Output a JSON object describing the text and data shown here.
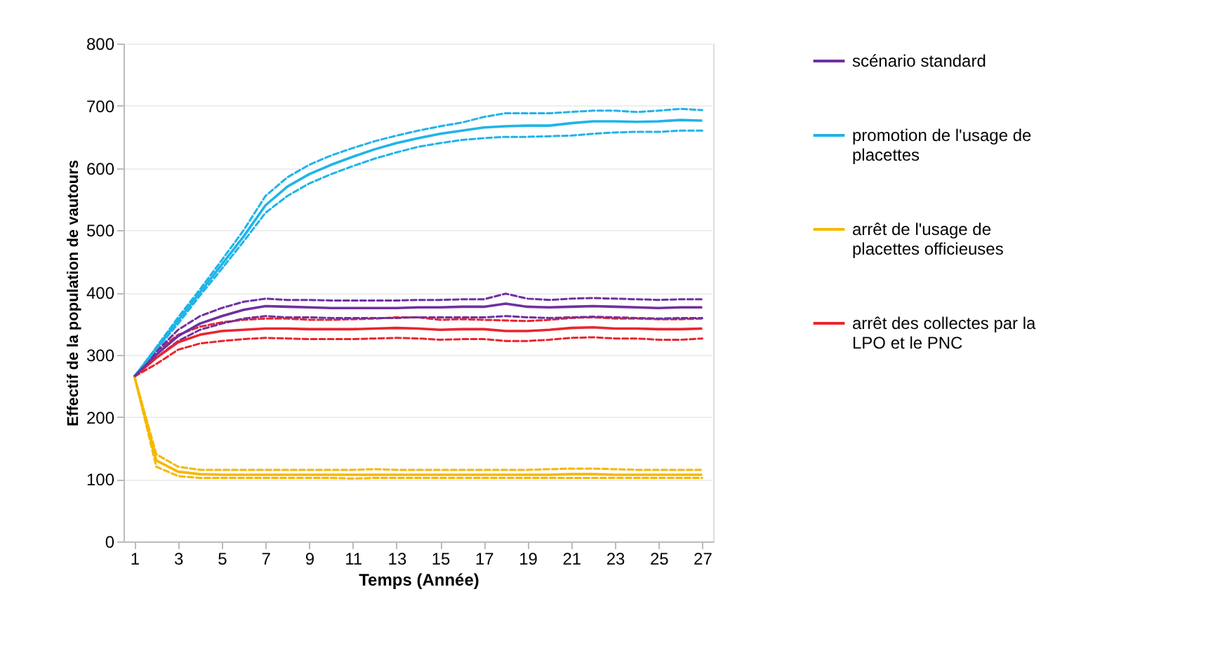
{
  "chart_data": {
    "type": "line",
    "xlabel": "Temps (Année)",
    "ylabel": "Effectif de la population de vautours",
    "x": [
      1,
      2,
      3,
      4,
      5,
      6,
      7,
      8,
      9,
      10,
      11,
      12,
      13,
      14,
      15,
      16,
      17,
      18,
      19,
      20,
      21,
      22,
      23,
      24,
      25,
      26,
      27
    ],
    "xlim": [
      0.5,
      27.5
    ],
    "xticks": [
      1,
      3,
      5,
      7,
      9,
      11,
      13,
      15,
      17,
      19,
      21,
      23,
      25,
      27
    ],
    "ylim": [
      0,
      800
    ],
    "yticks": [
      0,
      100,
      200,
      300,
      400,
      500,
      600,
      700,
      800
    ],
    "grid": "y",
    "legend": "right",
    "marker": "none",
    "series": [
      {
        "name": "scénario standard",
        "color": "#7030a0",
        "line_style": "solid",
        "values": [
          265,
          300,
          330,
          350,
          362,
          372,
          378,
          377,
          376,
          375,
          375,
          375,
          375,
          376,
          376,
          377,
          377,
          382,
          377,
          376,
          377,
          378,
          377,
          376,
          375,
          376,
          376
        ]
      },
      {
        "name": "promotion de l'usage de placettes",
        "color": "#1fb4e8",
        "line_style": "solid",
        "values": [
          265,
          310,
          355,
          400,
          445,
          490,
          540,
          570,
          590,
          605,
          618,
          630,
          640,
          648,
          655,
          660,
          665,
          667,
          668,
          668,
          672,
          675,
          675,
          674,
          675,
          677,
          676
        ]
      },
      {
        "name": "arrêt de l'usage de placettes officieuses",
        "color": "#f5b800",
        "line_style": "solid",
        "values": [
          265,
          130,
          112,
          108,
          107,
          107,
          107,
          107,
          107,
          107,
          107,
          107,
          107,
          107,
          107,
          107,
          107,
          107,
          107,
          107,
          108,
          108,
          107,
          107,
          107,
          107,
          107
        ]
      },
      {
        "name": "arrêt des collectes par la LPO et le PNC",
        "color": "#e8262e",
        "line_style": "solid",
        "values": [
          265,
          295,
          320,
          332,
          338,
          340,
          342,
          342,
          341,
          341,
          341,
          342,
          343,
          342,
          340,
          341,
          341,
          338,
          338,
          340,
          343,
          344,
          342,
          342,
          341,
          341,
          342
        ]
      },
      {
        "color": "#7030a0",
        "line_style": "dashed",
        "values": [
          265,
          295,
          322,
          340,
          350,
          358,
          362,
          360,
          360,
          359,
          359,
          359,
          359,
          360,
          360,
          360,
          360,
          362,
          360,
          359,
          360,
          361,
          360,
          359,
          358,
          359,
          359
        ]
      },
      {
        "color": "#7030a0",
        "line_style": "dashed",
        "values": [
          265,
          305,
          340,
          362,
          375,
          385,
          390,
          388,
          388,
          387,
          387,
          387,
          387,
          388,
          388,
          389,
          389,
          398,
          390,
          388,
          390,
          391,
          390,
          389,
          388,
          389,
          389
        ]
      },
      {
        "color": "#1fb4e8",
        "line_style": "dashed",
        "values": [
          265,
          308,
          350,
          395,
          438,
          482,
          528,
          555,
          575,
          590,
          603,
          615,
          625,
          634,
          640,
          645,
          648,
          650,
          650,
          651,
          652,
          655,
          657,
          658,
          658,
          660,
          660
        ]
      },
      {
        "color": "#1fb4e8",
        "line_style": "dashed",
        "values": [
          265,
          312,
          360,
          405,
          452,
          500,
          555,
          585,
          605,
          620,
          632,
          643,
          652,
          660,
          667,
          673,
          682,
          688,
          688,
          688,
          690,
          692,
          692,
          690,
          692,
          695,
          693
        ]
      },
      {
        "color": "#f5b800",
        "line_style": "dashed",
        "values": [
          265,
          120,
          105,
          102,
          102,
          102,
          102,
          102,
          102,
          102,
          101,
          102,
          102,
          102,
          102,
          102,
          102,
          102,
          102,
          102,
          102,
          102,
          102,
          102,
          102,
          102,
          102
        ]
      },
      {
        "color": "#f5b800",
        "line_style": "dashed",
        "values": [
          265,
          140,
          120,
          115,
          115,
          115,
          115,
          115,
          115,
          115,
          115,
          116,
          115,
          115,
          115,
          115,
          115,
          115,
          115,
          116,
          117,
          117,
          116,
          115,
          115,
          115,
          115
        ]
      },
      {
        "color": "#e8262e",
        "line_style": "dashed",
        "values": [
          265,
          285,
          308,
          318,
          322,
          325,
          327,
          326,
          325,
          325,
          325,
          326,
          327,
          326,
          324,
          325,
          325,
          322,
          322,
          324,
          327,
          328,
          326,
          326,
          324,
          324,
          326
        ]
      },
      {
        "color": "#e8262e",
        "line_style": "dashed",
        "values": [
          265,
          305,
          332,
          345,
          352,
          356,
          358,
          358,
          356,
          356,
          357,
          358,
          360,
          360,
          356,
          357,
          356,
          355,
          354,
          356,
          359,
          360,
          358,
          358,
          357,
          357,
          358
        ]
      }
    ]
  }
}
